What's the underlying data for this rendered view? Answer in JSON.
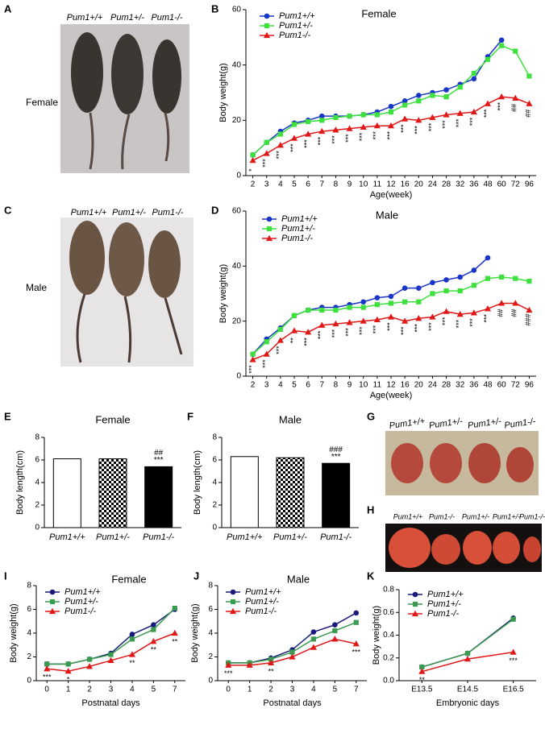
{
  "photos": [
    {
      "label": "A",
      "caption": "Female",
      "genotypes": [
        "Pum1+/+",
        "Pum1+/-",
        "Pum1-/-"
      ]
    },
    {
      "label": "C",
      "caption": "Male",
      "genotypes": [
        "Pum1+/+",
        "Pum1+/-",
        "Pum1-/-"
      ]
    },
    {
      "label": "G",
      "genotypes": [
        "Pum1+/+",
        "Pum1+/-",
        "Pum1+/-",
        "Pum1-/-"
      ]
    },
    {
      "label": "H",
      "genotypes": [
        "Pum1+/+",
        "Pum1-/-",
        "Pum1+/-",
        "Pum1+/-",
        "Pum1-/-"
      ]
    }
  ],
  "chart_data": [
    {
      "label": "B",
      "type": "line",
      "title": "Female",
      "x_label": "Age(week)",
      "y_label": "Body weight(g)",
      "categories": [
        "2",
        "3",
        "4",
        "5",
        "6",
        "7",
        "8",
        "9",
        "10",
        "11",
        "12",
        "16",
        "20",
        "24",
        "28",
        "32",
        "36",
        "48",
        "60",
        "72",
        "96"
      ],
      "ylim": [
        0,
        60
      ],
      "yticks": [
        0,
        20,
        40,
        60
      ],
      "series": [
        {
          "name": "Pum1+/+",
          "color": "#1a35c8",
          "marker": "circle",
          "values": [
            7.5,
            12,
            16,
            19,
            20,
            21.5,
            21.5,
            21.5,
            22,
            23,
            25,
            27,
            29,
            30,
            31,
            33,
            35,
            43,
            49,
            null,
            null
          ]
        },
        {
          "name": "Pum1+/-",
          "color": "#3ee03e",
          "marker": "square",
          "values": [
            7.5,
            12,
            15,
            18.5,
            19.5,
            20,
            21,
            21.5,
            22,
            22,
            23,
            25.5,
            27,
            29,
            28.5,
            32,
            37,
            42,
            47,
            45,
            36
          ]
        },
        {
          "name": "Pum1-/-",
          "color": "#e01818",
          "marker": "triangle",
          "values": [
            5.5,
            8,
            11,
            13.5,
            15,
            16,
            16.5,
            17,
            17.5,
            18,
            18,
            20.5,
            20,
            21,
            22,
            22.5,
            23,
            26,
            28.5,
            28,
            26
          ]
        }
      ],
      "significance": [
        "*",
        "***",
        "***",
        "***",
        "***",
        "***",
        "***",
        "***",
        "***",
        "***",
        "***",
        "***",
        "***",
        "***",
        "***",
        "***",
        "***",
        "***",
        "***",
        "##",
        "##"
      ]
    },
    {
      "label": "D",
      "type": "line",
      "title": "Male",
      "x_label": "Age(week)",
      "y_label": "Body weight(g)",
      "categories": [
        "2",
        "3",
        "4",
        "5",
        "6",
        "7",
        "8",
        "9",
        "10",
        "11",
        "12",
        "16",
        "20",
        "24",
        "28",
        "32",
        "36",
        "48",
        "60",
        "72",
        "96"
      ],
      "ylim": [
        0,
        60
      ],
      "yticks": [
        0,
        20,
        40,
        60
      ],
      "series": [
        {
          "name": "Pum1+/+",
          "color": "#1a35c8",
          "marker": "circle",
          "values": [
            8,
            13.5,
            17.5,
            22,
            24,
            25,
            25,
            26,
            27,
            28.5,
            29,
            32,
            32,
            34,
            35,
            36,
            38.5,
            43,
            null,
            null,
            null
          ]
        },
        {
          "name": "Pum1+/-",
          "color": "#3ee03e",
          "marker": "square",
          "values": [
            8,
            12.5,
            17,
            22,
            24,
            24,
            24,
            25,
            25,
            26,
            26.5,
            27,
            27,
            30,
            31,
            31,
            33,
            35.5,
            36,
            35.5,
            34.5
          ]
        },
        {
          "name": "Pum1-/-",
          "color": "#e01818",
          "marker": "triangle",
          "values": [
            6,
            8,
            13,
            16.5,
            16,
            18.5,
            19,
            19.5,
            20,
            20.5,
            21.5,
            20,
            21,
            21.5,
            23.5,
            22.5,
            23,
            24.5,
            26.5,
            26.5,
            24
          ]
        }
      ],
      "significance": [
        "***",
        "***",
        "***",
        "**",
        "***",
        "***",
        "***",
        "***",
        "***",
        "***",
        "***",
        "***",
        "***",
        "***",
        "***",
        "***",
        "***",
        "***",
        "##",
        "##",
        "###"
      ]
    },
    {
      "label": "E",
      "type": "bar",
      "title": "Female",
      "y_label": "Body length(cm)",
      "categories": [
        "Pum1+/+",
        "Pum1+/-",
        "Pum1-/-"
      ],
      "values": [
        6.1,
        6.1,
        5.4
      ],
      "bar_styles": [
        "open",
        "checkered",
        "solid"
      ],
      "ylim": [
        0,
        8
      ],
      "yticks": [
        0,
        2,
        4,
        6,
        8
      ],
      "significance": [
        null,
        null,
        [
          "##",
          "***"
        ]
      ]
    },
    {
      "label": "F",
      "type": "bar",
      "title": "Male",
      "y_label": "Body length(cm)",
      "categories": [
        "Pum1+/+",
        "Pum1+/-",
        "Pum1-/-"
      ],
      "values": [
        6.3,
        6.2,
        5.7
      ],
      "bar_styles": [
        "open",
        "checkered",
        "solid"
      ],
      "ylim": [
        0,
        8
      ],
      "yticks": [
        0,
        2,
        4,
        6,
        8
      ],
      "significance": [
        null,
        null,
        [
          "###",
          "***"
        ]
      ]
    },
    {
      "label": "I",
      "type": "line",
      "title": "Female",
      "x_label": "Postnatal days",
      "y_label": "Body weight(g)",
      "categories": [
        "0",
        "1",
        "2",
        "3",
        "4",
        "5",
        "7"
      ],
      "ylim": [
        0,
        8
      ],
      "yticks": [
        0,
        2,
        4,
        6,
        8
      ],
      "series": [
        {
          "name": "Pum1+/+",
          "color": "#1a1a7a",
          "marker": "circle",
          "values": [
            1.4,
            1.4,
            1.8,
            2.3,
            3.9,
            4.7,
            6.0
          ]
        },
        {
          "name": "Pum1+/-",
          "color": "#3a9a50",
          "marker": "square",
          "values": [
            1.4,
            1.4,
            1.8,
            2.2,
            3.5,
            4.3,
            6.1
          ]
        },
        {
          "name": "Pum1-/-",
          "color": "#e01818",
          "marker": "triangle",
          "values": [
            1.0,
            0.8,
            1.2,
            1.7,
            2.2,
            3.3,
            4.0
          ]
        }
      ],
      "significance": [
        "***",
        "*",
        null,
        null,
        "**",
        "**",
        "**"
      ]
    },
    {
      "label": "J",
      "type": "line",
      "title": "Male",
      "x_label": "Postnatal days",
      "y_label": "Body weight(g)",
      "categories": [
        "0",
        "1",
        "2",
        "3",
        "4",
        "5",
        "7"
      ],
      "ylim": [
        0,
        8
      ],
      "yticks": [
        0,
        2,
        4,
        6,
        8
      ],
      "series": [
        {
          "name": "Pum1+/+",
          "color": "#1a1a7a",
          "marker": "circle",
          "values": [
            1.5,
            1.5,
            1.9,
            2.6,
            4.1,
            4.7,
            5.7
          ]
        },
        {
          "name": "Pum1+/-",
          "color": "#3a9a50",
          "marker": "square",
          "values": [
            1.5,
            1.5,
            1.8,
            2.4,
            3.5,
            4.2,
            4.9
          ]
        },
        {
          "name": "Pum1-/-",
          "color": "#e01818",
          "marker": "triangle",
          "values": [
            1.3,
            1.3,
            1.5,
            2.0,
            2.8,
            3.5,
            3.1
          ]
        }
      ],
      "significance": [
        "***",
        null,
        "**",
        null,
        null,
        null,
        "***"
      ]
    },
    {
      "label": "K",
      "type": "line",
      "x_label": "Embryonic days",
      "y_label": "Body weight(g)",
      "categories": [
        "E13.5",
        "E14.5",
        "E16.5"
      ],
      "ylim": [
        0,
        0.8
      ],
      "yticks": [
        {
          "value": 0,
          "label": "0.0"
        },
        0.2,
        0.4,
        0.6,
        0.8
      ],
      "series": [
        {
          "name": "Pum1+/+",
          "color": "#1a1a7a",
          "marker": "circle",
          "values": [
            0.12,
            0.24,
            0.55
          ]
        },
        {
          "name": "Pum1+/-",
          "color": "#3a9a50",
          "marker": "square",
          "values": [
            0.12,
            0.24,
            0.54
          ]
        },
        {
          "name": "Pum1-/-",
          "color": "#e01818",
          "marker": "triangle",
          "values": [
            0.08,
            0.19,
            0.25
          ]
        }
      ],
      "significance": [
        "**",
        null,
        "***"
      ]
    }
  ]
}
